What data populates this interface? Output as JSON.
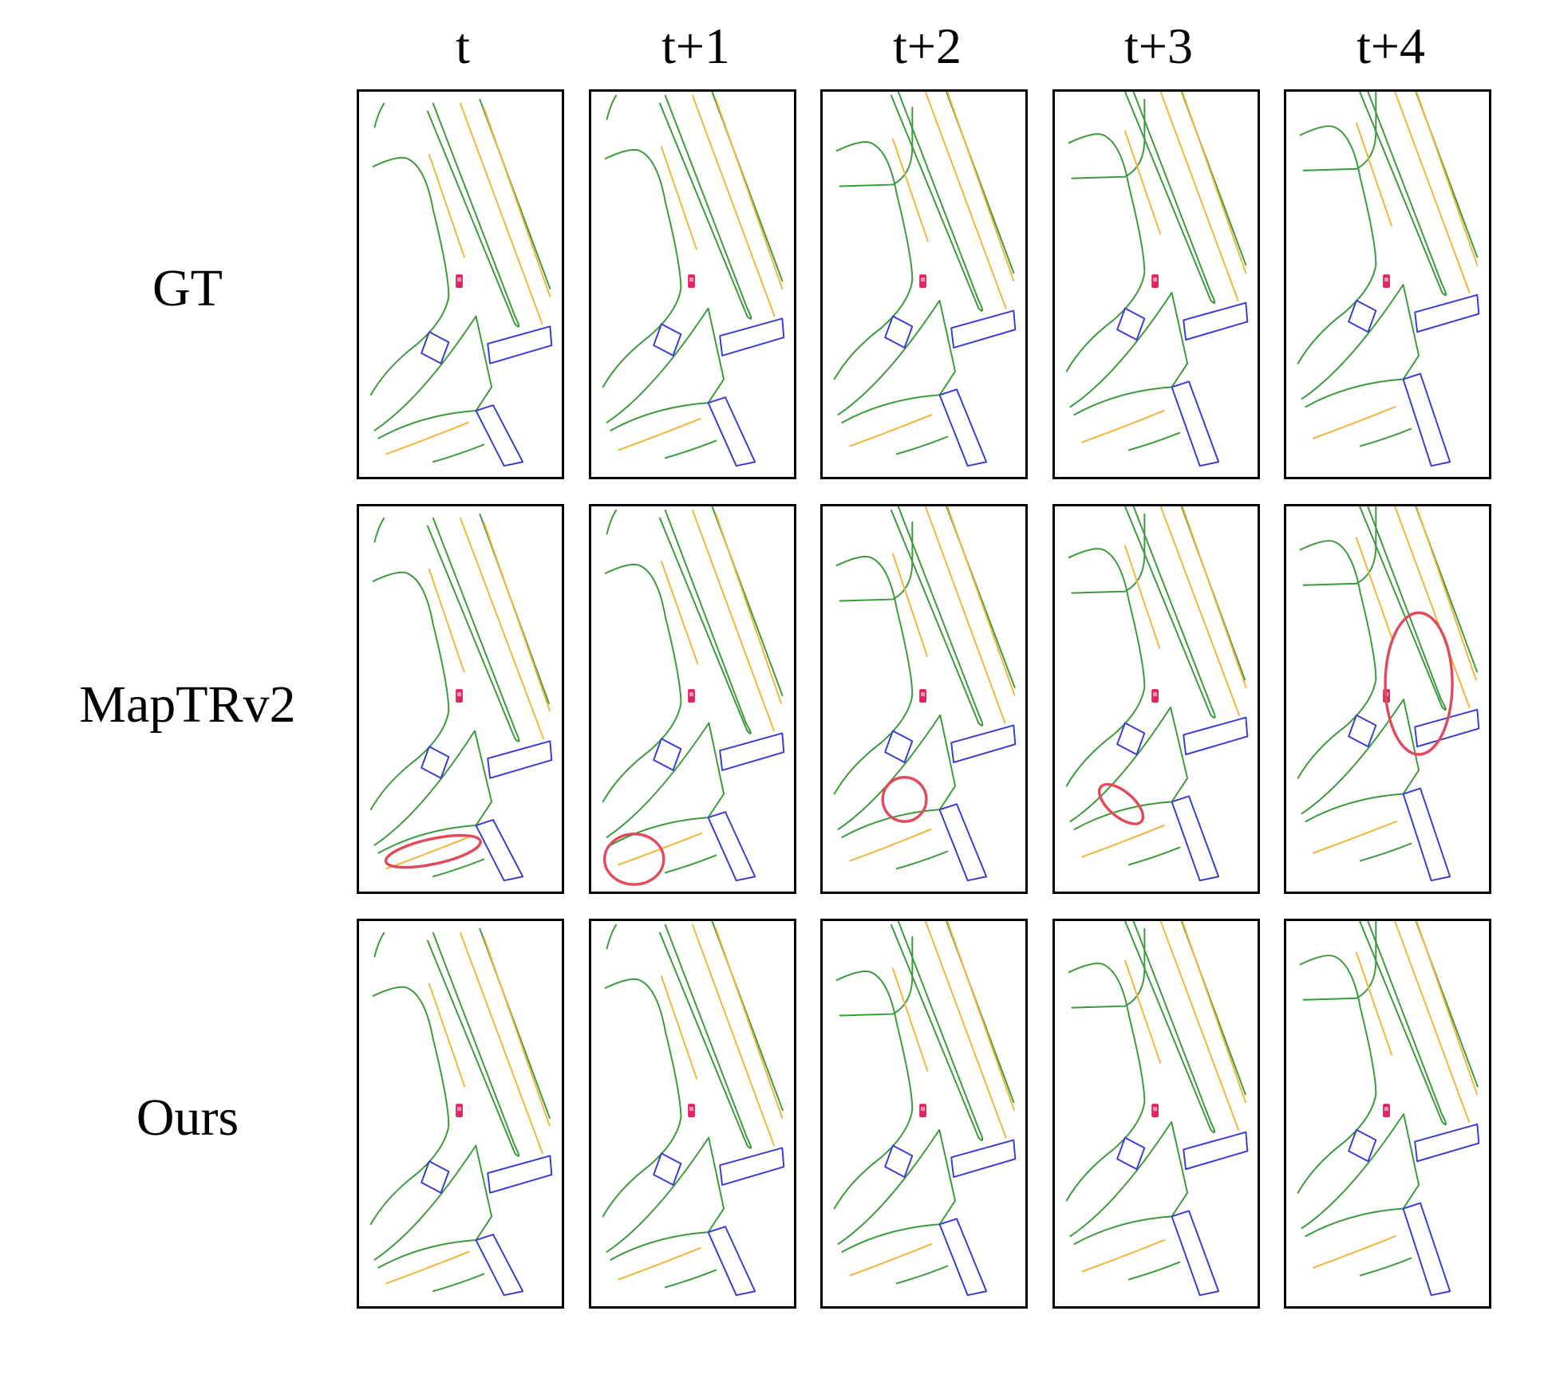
{
  "columns": [
    "t",
    "t+1",
    "t+2",
    "t+3",
    "t+4"
  ],
  "rows": [
    "GT",
    "MapTRv2",
    "Ours"
  ],
  "colors": {
    "boundary": "#3a9a3a",
    "divider": "#f2b53a",
    "crossing": "#3a3ad4",
    "ego": "#e0245e",
    "highlight": "#e04a5a"
  },
  "icons": [
    "ego-vehicle-icon",
    "error-highlight-ellipse"
  ]
}
